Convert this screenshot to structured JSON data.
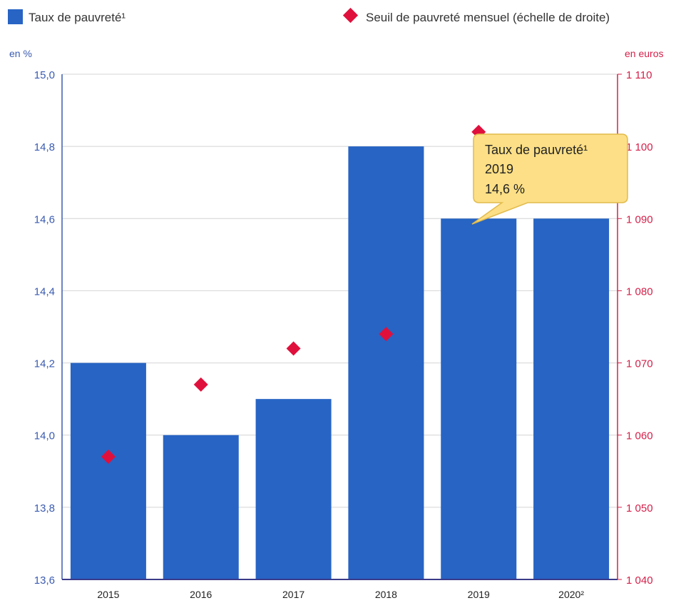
{
  "colors": {
    "bar": "#2764c4",
    "marker": "#e0103c",
    "left_axis": "#3a5bb0",
    "right_axis": "#d4204a",
    "grid": "#d4d4d4",
    "tooltip_fill": "#fcdf86",
    "tooltip_border": "#e2bb4c"
  },
  "chart_data": {
    "type": "bar",
    "categories": [
      "2015",
      "2016",
      "2017",
      "2018",
      "2019",
      "2020²"
    ],
    "series": [
      {
        "name": "Taux de pauvreté¹",
        "type": "bar",
        "axis": "left",
        "values": [
          14.2,
          14.0,
          14.1,
          14.8,
          14.6,
          14.6
        ]
      },
      {
        "name": "Seuil de pauvreté mensuel (échelle de droite)",
        "type": "scatter",
        "axis": "right",
        "values": [
          1057,
          1067,
          1072,
          1074,
          1102,
          null
        ]
      }
    ],
    "left_axis": {
      "unit": "en %",
      "ylim": [
        13.6,
        15.0
      ],
      "ticks": [
        "15,0",
        "14,8",
        "14,6",
        "14,4",
        "14,2",
        "14,0",
        "13,8",
        "13,6"
      ]
    },
    "right_axis": {
      "unit": "en euros",
      "ylim": [
        1040,
        1110
      ],
      "ticks": [
        "1 110",
        "1 100",
        "1 090",
        "1 080",
        "1 070",
        "1 060",
        "1 050",
        "1 040"
      ]
    },
    "grid": true,
    "legend": "top",
    "tooltip": {
      "series": "Taux de pauvreté¹",
      "category": "2019",
      "value": "14,6 %"
    }
  }
}
